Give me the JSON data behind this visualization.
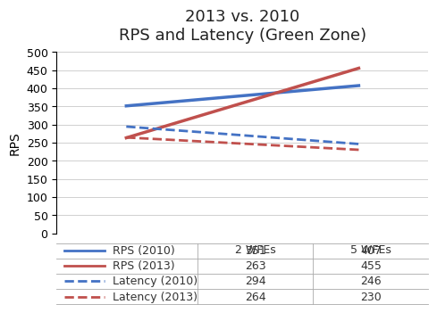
{
  "title_line1": "2013 vs. 2010",
  "title_line2": "RPS and Latency (Green Zone)",
  "x_labels": [
    "2 WFEs",
    "5 WFEs"
  ],
  "x_positions": [
    0,
    1
  ],
  "ylabel": "RPS",
  "ylim": [
    0,
    500
  ],
  "yticks": [
    0,
    50,
    100,
    150,
    200,
    250,
    300,
    350,
    400,
    450,
    500
  ],
  "series": {
    "RPS (2010)": {
      "values": [
        351,
        407
      ],
      "color": "#4472C4",
      "linestyle": "solid",
      "linewidth": 2.5
    },
    "RPS (2013)": {
      "values": [
        263,
        455
      ],
      "color": "#C0504D",
      "linestyle": "solid",
      "linewidth": 2.5
    },
    "Latency (2010)": {
      "values": [
        294,
        246
      ],
      "color": "#4472C4",
      "linestyle": "dashed",
      "linewidth": 2.0
    },
    "Latency (2013)": {
      "values": [
        264,
        230
      ],
      "color": "#C0504D",
      "linestyle": "dashed",
      "linewidth": 2.0
    }
  },
  "series_order": [
    "RPS (2010)",
    "RPS (2013)",
    "Latency (2010)",
    "Latency (2013)"
  ],
  "table_data": [
    [
      "RPS (2010)",
      "351",
      "407"
    ],
    [
      "RPS (2013)",
      "263",
      "455"
    ],
    [
      "Latency (2010)",
      "294",
      "246"
    ],
    [
      "Latency (2013)",
      "264",
      "230"
    ]
  ],
  "table_col_labels": [
    "",
    "2 WFEs",
    "5 WFEs"
  ],
  "background_color": "#FFFFFF",
  "grid_color": "#D0D0D0",
  "line_colors": {
    "RPS (2010)": "#4472C4",
    "RPS (2013)": "#C0504D",
    "Latency (2010)": "#4472C4",
    "Latency (2013)": "#C0504D"
  },
  "line_styles": {
    "RPS (2010)": "solid",
    "RPS (2013)": "solid",
    "Latency (2010)": "dashed",
    "Latency (2013)": "dashed"
  }
}
